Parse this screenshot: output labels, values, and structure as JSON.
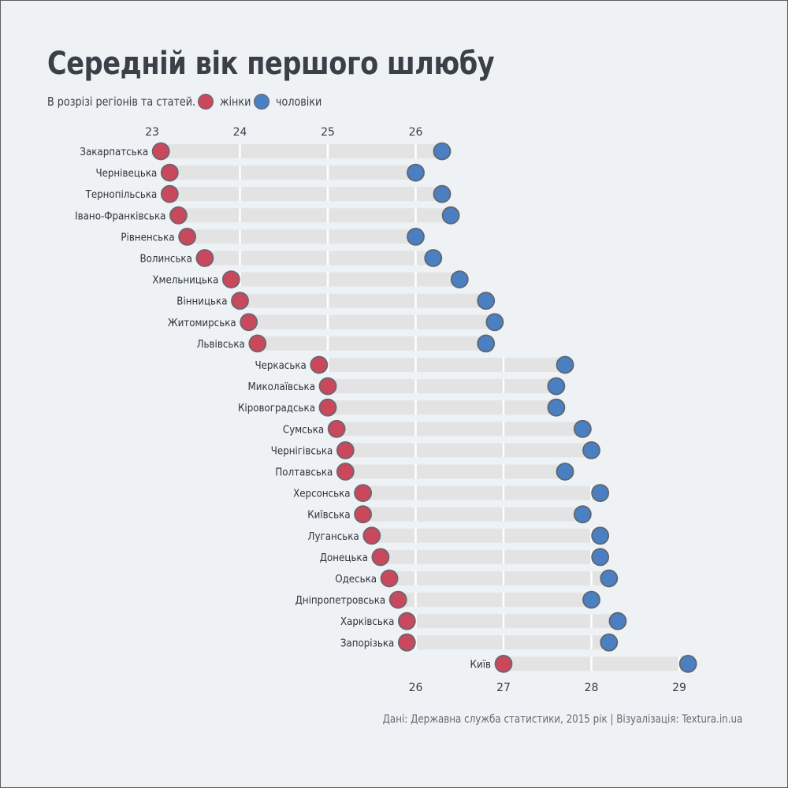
{
  "title": "Середній вік першого шлюбу",
  "subtitle": "В розрізі регіонів та статей.",
  "legend": [
    {
      "label": "жінки",
      "color": "#c9485b"
    },
    {
      "label": "чоловіки",
      "color": "#4a7fc1"
    }
  ],
  "source": "Дані: Державна служба статистики, 2015 рік | Візуалізація: Textura.in.ua",
  "chart_data": {
    "type": "dumbbell",
    "top_axis_ticks": [
      23,
      24,
      25,
      26
    ],
    "bottom_axis_ticks": [
      26,
      27,
      28,
      29
    ],
    "xlim": [
      23,
      29.2
    ],
    "series": [
      {
        "name": "жінки",
        "color": "#c9485b"
      },
      {
        "name": "чоловіки",
        "color": "#4a7fc1"
      }
    ],
    "rows": [
      {
        "region": "Закарпатська",
        "women": 23.1,
        "men": 26.3
      },
      {
        "region": "Чернівецька",
        "women": 23.2,
        "men": 26.0
      },
      {
        "region": "Тернопільська",
        "women": 23.2,
        "men": 26.3
      },
      {
        "region": "Івано-Франківська",
        "women": 23.3,
        "men": 26.4
      },
      {
        "region": "Рівненська",
        "women": 23.4,
        "men": 26.0
      },
      {
        "region": "Волинська",
        "women": 23.6,
        "men": 26.2
      },
      {
        "region": "Хмельницька",
        "women": 23.9,
        "men": 26.5
      },
      {
        "region": "Вінницька",
        "women": 24.0,
        "men": 26.8
      },
      {
        "region": "Житомирська",
        "women": 24.1,
        "men": 26.9
      },
      {
        "region": "Львівська",
        "women": 24.2,
        "men": 26.8
      },
      {
        "region": "Черкаська",
        "women": 24.9,
        "men": 27.7
      },
      {
        "region": "Миколаївська",
        "women": 25.0,
        "men": 27.6
      },
      {
        "region": "Кіровоградська",
        "women": 25.0,
        "men": 27.6
      },
      {
        "region": "Сумська",
        "women": 25.1,
        "men": 27.9
      },
      {
        "region": "Чернігівська",
        "women": 25.2,
        "men": 28.0
      },
      {
        "region": "Полтавська",
        "women": 25.2,
        "men": 27.7
      },
      {
        "region": "Херсонська",
        "women": 25.4,
        "men": 28.1
      },
      {
        "region": "Київська",
        "women": 25.4,
        "men": 27.9
      },
      {
        "region": "Луганська",
        "women": 25.5,
        "men": 28.1
      },
      {
        "region": "Донецька",
        "women": 25.6,
        "men": 28.1
      },
      {
        "region": "Одеська",
        "women": 25.7,
        "men": 28.2
      },
      {
        "region": "Дніпропетровська",
        "women": 25.8,
        "men": 28.0
      },
      {
        "region": "Харківська",
        "women": 25.9,
        "men": 28.3
      },
      {
        "region": "Запорізька",
        "women": 25.9,
        "men": 28.2
      },
      {
        "region": "Київ",
        "women": 27.0,
        "men": 29.1
      }
    ]
  }
}
